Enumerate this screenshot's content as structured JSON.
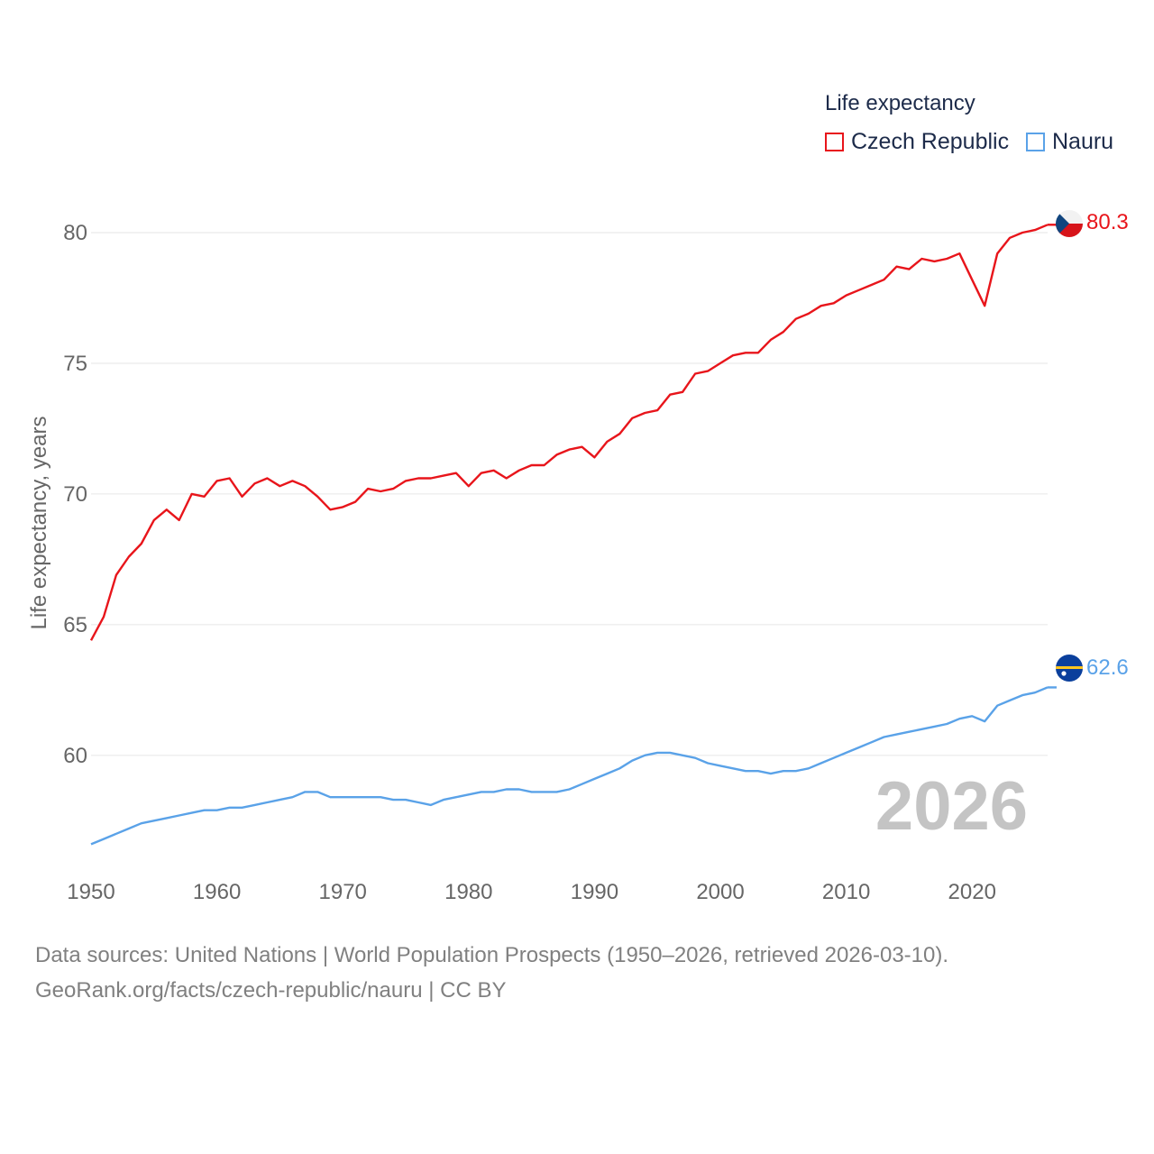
{
  "legend": {
    "title": "Life expectancy",
    "items": [
      {
        "label": "Czech Republic",
        "color": "#e8151b"
      },
      {
        "label": "Nauru",
        "color": "#5aa2e8"
      }
    ]
  },
  "footer": {
    "line1": "Data sources: United Nations | World Population Prospects (1950–2026, retrieved 2026-03-10).",
    "line2": "GeoRank.org/facts/czech-republic/nauru | CC BY"
  },
  "year_label": "2026",
  "chart_data": {
    "type": "line",
    "title": "Life expectancy",
    "xlabel": "",
    "ylabel": "Life expectancy, years",
    "xlim": [
      1950,
      2026
    ],
    "ylim": [
      56.2,
      82
    ],
    "x_ticks": [
      1950,
      1960,
      1970,
      1980,
      1990,
      2000,
      2010,
      2020
    ],
    "y_ticks": [
      60,
      65,
      70,
      75,
      80
    ],
    "grid": true,
    "legend_position": "top-right",
    "x": [
      1950,
      1951,
      1952,
      1953,
      1954,
      1955,
      1956,
      1957,
      1958,
      1959,
      1960,
      1961,
      1962,
      1963,
      1964,
      1965,
      1966,
      1967,
      1968,
      1969,
      1970,
      1971,
      1972,
      1973,
      1974,
      1975,
      1976,
      1977,
      1978,
      1979,
      1980,
      1981,
      1982,
      1983,
      1984,
      1985,
      1986,
      1987,
      1988,
      1989,
      1990,
      1991,
      1992,
      1993,
      1994,
      1995,
      1996,
      1997,
      1998,
      1999,
      2000,
      2001,
      2002,
      2003,
      2004,
      2005,
      2006,
      2007,
      2008,
      2009,
      2010,
      2011,
      2012,
      2013,
      2014,
      2015,
      2016,
      2017,
      2018,
      2019,
      2020,
      2021,
      2022,
      2023,
      2024,
      2025,
      2026
    ],
    "series": [
      {
        "name": "Czech Republic",
        "color": "#e8151b",
        "end_label": "80.3",
        "values": [
          64.4,
          65.3,
          66.9,
          67.6,
          68.1,
          69.0,
          69.4,
          69.0,
          70.0,
          69.9,
          70.5,
          70.6,
          69.9,
          70.4,
          70.6,
          70.3,
          70.5,
          70.3,
          69.9,
          69.4,
          69.5,
          69.7,
          70.2,
          70.1,
          70.2,
          70.5,
          70.6,
          70.6,
          70.7,
          70.8,
          70.3,
          70.8,
          70.9,
          70.6,
          70.9,
          71.1,
          71.1,
          71.5,
          71.7,
          71.8,
          71.4,
          72.0,
          72.3,
          72.9,
          73.1,
          73.2,
          73.8,
          73.9,
          74.6,
          74.7,
          75.0,
          75.3,
          75.4,
          75.4,
          75.9,
          76.2,
          76.7,
          76.9,
          77.2,
          77.3,
          77.6,
          77.8,
          78.0,
          78.2,
          78.7,
          78.6,
          79.0,
          78.9,
          79.0,
          79.2,
          78.2,
          77.2,
          79.2,
          79.8,
          80.0,
          80.1,
          80.3
        ]
      },
      {
        "name": "Nauru",
        "color": "#5aa2e8",
        "end_label": "62.6",
        "values": [
          56.6,
          56.8,
          57.0,
          57.2,
          57.4,
          57.5,
          57.6,
          57.7,
          57.8,
          57.9,
          57.9,
          58.0,
          58.0,
          58.1,
          58.2,
          58.3,
          58.4,
          58.6,
          58.6,
          58.4,
          58.4,
          58.4,
          58.4,
          58.4,
          58.3,
          58.3,
          58.2,
          58.1,
          58.3,
          58.4,
          58.5,
          58.6,
          58.6,
          58.7,
          58.7,
          58.6,
          58.6,
          58.6,
          58.7,
          58.9,
          59.1,
          59.3,
          59.5,
          59.8,
          60.0,
          60.1,
          60.1,
          60.0,
          59.9,
          59.7,
          59.6,
          59.5,
          59.4,
          59.4,
          59.3,
          59.4,
          59.4,
          59.5,
          59.7,
          59.9,
          60.1,
          60.3,
          60.5,
          60.7,
          60.8,
          60.9,
          61.0,
          61.1,
          61.2,
          61.4,
          61.5,
          61.3,
          61.9,
          62.1,
          62.3,
          62.4,
          62.6
        ]
      }
    ]
  }
}
